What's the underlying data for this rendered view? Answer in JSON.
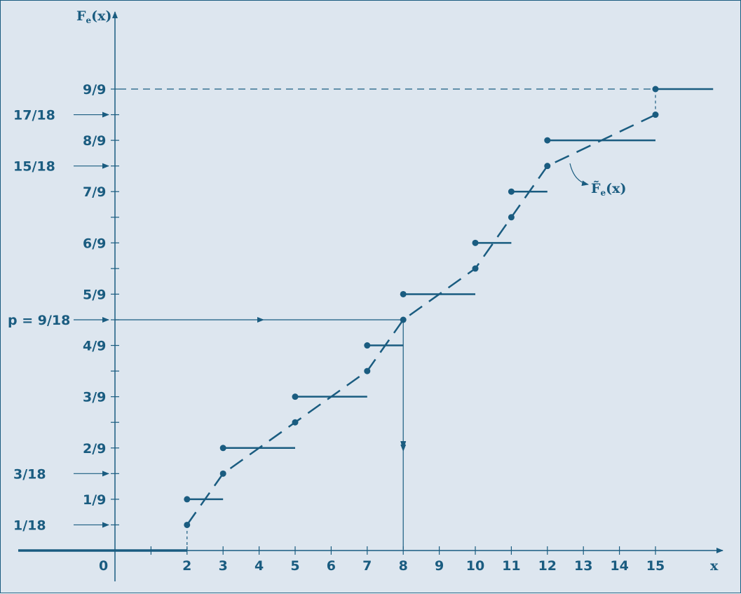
{
  "chart_data": {
    "type": "line",
    "title": "",
    "xlabel": "x",
    "ylabel_main": "F",
    "ylabel_sub": "e",
    "ylabel_tail": "(x)",
    "xlim": [
      0,
      17
    ],
    "ylim": [
      0,
      1.05
    ],
    "grid": false,
    "color": "#1a5c80",
    "background": "#dde6ef",
    "origin_label": "0",
    "x_tick_labels": [
      "2",
      "3",
      "4",
      "5",
      "6",
      "7",
      "8",
      "9",
      "10",
      "11",
      "12",
      "13",
      "14",
      "15"
    ],
    "y_tick_labels": [
      {
        "value": 0.0555556,
        "label": "1/18",
        "arrow": true
      },
      {
        "value": 0.1111111,
        "label": "1/9",
        "arrow": false
      },
      {
        "value": 0.1666667,
        "label": "3/18",
        "arrow": true
      },
      {
        "value": 0.2222222,
        "label": "2/9",
        "arrow": false
      },
      {
        "value": 0.3333333,
        "label": "3/9",
        "arrow": false
      },
      {
        "value": 0.4444444,
        "label": "4/9",
        "arrow": false
      },
      {
        "value": 0.5,
        "label": "p = 9/18",
        "arrow": true
      },
      {
        "value": 0.5555556,
        "label": "5/9",
        "arrow": false
      },
      {
        "value": 0.6666667,
        "label": "6/9",
        "arrow": false
      },
      {
        "value": 0.7777778,
        "label": "7/9",
        "arrow": false
      },
      {
        "value": 0.8333333,
        "label": "15/18",
        "arrow": true
      },
      {
        "value": 0.8888889,
        "label": "8/9",
        "arrow": false
      },
      {
        "value": 0.9444444,
        "label": "17/18",
        "arrow": true
      },
      {
        "value": 1.0,
        "label": "9/9",
        "arrow": false
      }
    ],
    "minor_y_ticks": [
      0.2777778,
      0.3888889,
      0.6111111,
      0.7222222
    ],
    "step_function": [
      {
        "x_start": 0,
        "x_end": 2,
        "y": 0
      },
      {
        "x_start": 2,
        "x_end": 3,
        "y": 0.1111111
      },
      {
        "x_start": 3,
        "x_end": 5,
        "y": 0.2222222
      },
      {
        "x_start": 5,
        "x_end": 7,
        "y": 0.3333333
      },
      {
        "x_start": 7,
        "x_end": 8,
        "y": 0.4444444
      },
      {
        "x_start": 8,
        "x_end": 10,
        "y": 0.5555556
      },
      {
        "x_start": 10,
        "x_end": 11,
        "y": 0.6666667
      },
      {
        "x_start": 11,
        "x_end": 12,
        "y": 0.7777778
      },
      {
        "x_start": 12,
        "x_end": 15,
        "y": 0.8888889
      },
      {
        "x_start": 15,
        "x_end": 16.6,
        "y": 1.0
      }
    ],
    "interpolated_series": {
      "name": "F̃e(x)",
      "name_main": "F̃",
      "name_sub": "e",
      "name_tail": "(x)",
      "points": [
        [
          2,
          0.0555556
        ],
        [
          3,
          0.1666667
        ],
        [
          5,
          0.2777778
        ],
        [
          7,
          0.3888889
        ],
        [
          8,
          0.5
        ],
        [
          10,
          0.6111111
        ],
        [
          11,
          0.7222222
        ],
        [
          12,
          0.8333333
        ],
        [
          15,
          0.9444444
        ]
      ]
    },
    "quantile_construction": {
      "p": 0.5,
      "x": 8
    }
  }
}
